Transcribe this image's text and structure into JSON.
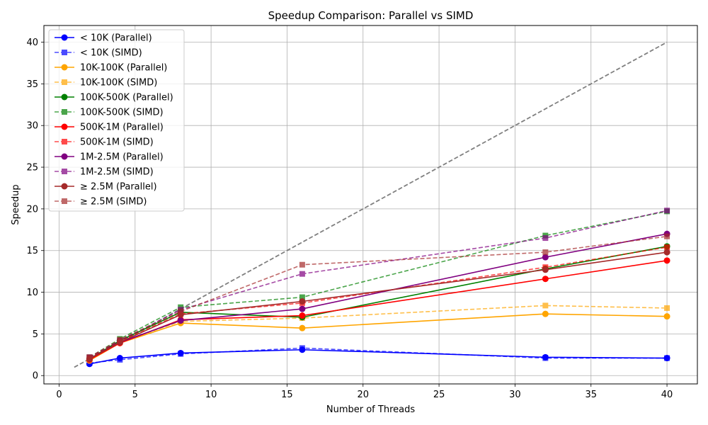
{
  "chart_data": {
    "type": "line",
    "title": "Speedup Comparison: Parallel vs SIMD",
    "xlabel": "Number of Threads",
    "ylabel": "Speedup",
    "xlim": [
      -1,
      42
    ],
    "ylim": [
      -1,
      42
    ],
    "xticks": [
      0,
      5,
      10,
      15,
      20,
      25,
      30,
      35,
      40
    ],
    "yticks": [
      0,
      5,
      10,
      15,
      20,
      25,
      30,
      35,
      40
    ],
    "grid": true,
    "legend_position": "top-left",
    "x": [
      2,
      4,
      8,
      16,
      32,
      40
    ],
    "reference_line": {
      "x": [
        1,
        40
      ],
      "y": [
        1,
        40
      ],
      "color": "#808080",
      "dashed": true
    },
    "series": [
      {
        "name": "< 10K (Parallel)",
        "color": "#0000ff",
        "dashed": false,
        "marker": "circle",
        "values": [
          1.4,
          2.1,
          2.7,
          3.1,
          2.2,
          2.1
        ]
      },
      {
        "name": "< 10K (SIMD)",
        "color": "#0000ff",
        "dashed": true,
        "marker": "square",
        "values": [
          1.5,
          1.9,
          2.6,
          3.3,
          2.1,
          2.1
        ]
      },
      {
        "name": "10K-100K (Parallel)",
        "color": "#ffa500",
        "dashed": false,
        "marker": "circle",
        "values": [
          1.8,
          3.9,
          6.3,
          5.7,
          7.4,
          7.1
        ]
      },
      {
        "name": "10K-100K (SIMD)",
        "color": "#ffa500",
        "dashed": true,
        "marker": "square",
        "values": [
          2.0,
          4.0,
          6.5,
          6.9,
          8.4,
          8.1
        ]
      },
      {
        "name": "100K-500K (Parallel)",
        "color": "#008000",
        "dashed": false,
        "marker": "circle",
        "values": [
          2.0,
          4.2,
          7.6,
          7.0,
          12.8,
          15.5
        ]
      },
      {
        "name": "100K-500K (SIMD)",
        "color": "#008000",
        "dashed": true,
        "marker": "square",
        "values": [
          2.2,
          4.4,
          8.2,
          9.4,
          16.8,
          19.7
        ]
      },
      {
        "name": "500K-1M (Parallel)",
        "color": "#ff0000",
        "dashed": false,
        "marker": "circle",
        "values": [
          1.9,
          3.9,
          6.7,
          7.2,
          11.6,
          13.8
        ]
      },
      {
        "name": "500K-1M (SIMD)",
        "color": "#ff0000",
        "dashed": true,
        "marker": "square",
        "values": [
          2.1,
          4.1,
          7.4,
          8.7,
          13.0,
          15.4
        ]
      },
      {
        "name": "1M-2.5M (Parallel)",
        "color": "#800080",
        "dashed": false,
        "marker": "circle",
        "values": [
          2.0,
          4.0,
          6.6,
          8.0,
          14.2,
          17.0
        ]
      },
      {
        "name": "1M-2.5M (SIMD)",
        "color": "#800080",
        "dashed": true,
        "marker": "square",
        "values": [
          2.2,
          4.2,
          7.9,
          12.2,
          16.5,
          19.8
        ]
      },
      {
        "name": "≥ 2.5M (Parallel)",
        "color": "#a52a2a",
        "dashed": false,
        "marker": "circle",
        "values": [
          2.0,
          4.0,
          7.3,
          8.9,
          12.7,
          14.8
        ]
      },
      {
        "name": "≥ 2.5M (SIMD)",
        "color": "#a52a2a",
        "dashed": true,
        "marker": "square",
        "values": [
          2.2,
          4.3,
          7.7,
          13.3,
          14.8,
          16.7
        ]
      }
    ]
  }
}
